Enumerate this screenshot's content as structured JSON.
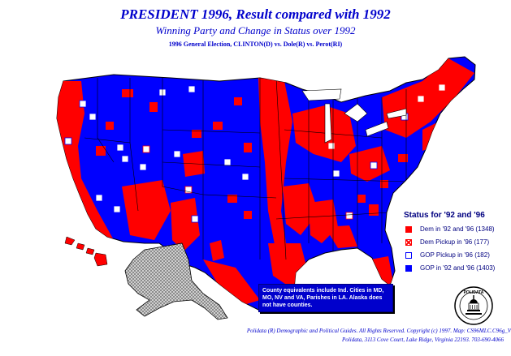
{
  "title": "PRESIDENT 1996, Result compared with 1992",
  "subtitle": "Winning Party and Change in Status over 1992",
  "election": "1996 General Election, CLINTON(D) vs. Dole(R) vs. Perot(RI)",
  "legend": {
    "title": "Status for '92 and '96",
    "items": [
      {
        "label": "Dem in '92 and '96 (1348)",
        "color": "#ff0000"
      },
      {
        "label": "Dem Pickup in '96 (177)",
        "color": "#ff0000"
      },
      {
        "label": "GOP Pickup in '96 (182)",
        "color": "#0000ff"
      },
      {
        "label": "GOP in '92 and '96 (1403)",
        "color": "#0000ff"
      }
    ]
  },
  "note": "County equivalents include Ind. Cities in MD, MO, NV and VA, Parishes in LA. Alaska does not have counties.",
  "seal_text": "POLIDATA",
  "footer": {
    "line1": "Polidata (R) Demographic and Political Guides. All Rights Reserved. Copyright (c) 1997. Map: CS96MLC.C96g_V",
    "line2": "Polidata, 3113 Cove Court, Lake Ridge, Virginia 22193. 703-690-4066"
  },
  "colors": {
    "dem": "#ff0000",
    "gop": "#0000ff",
    "text": "#0000cc",
    "alaska": "#c0c0c0"
  }
}
